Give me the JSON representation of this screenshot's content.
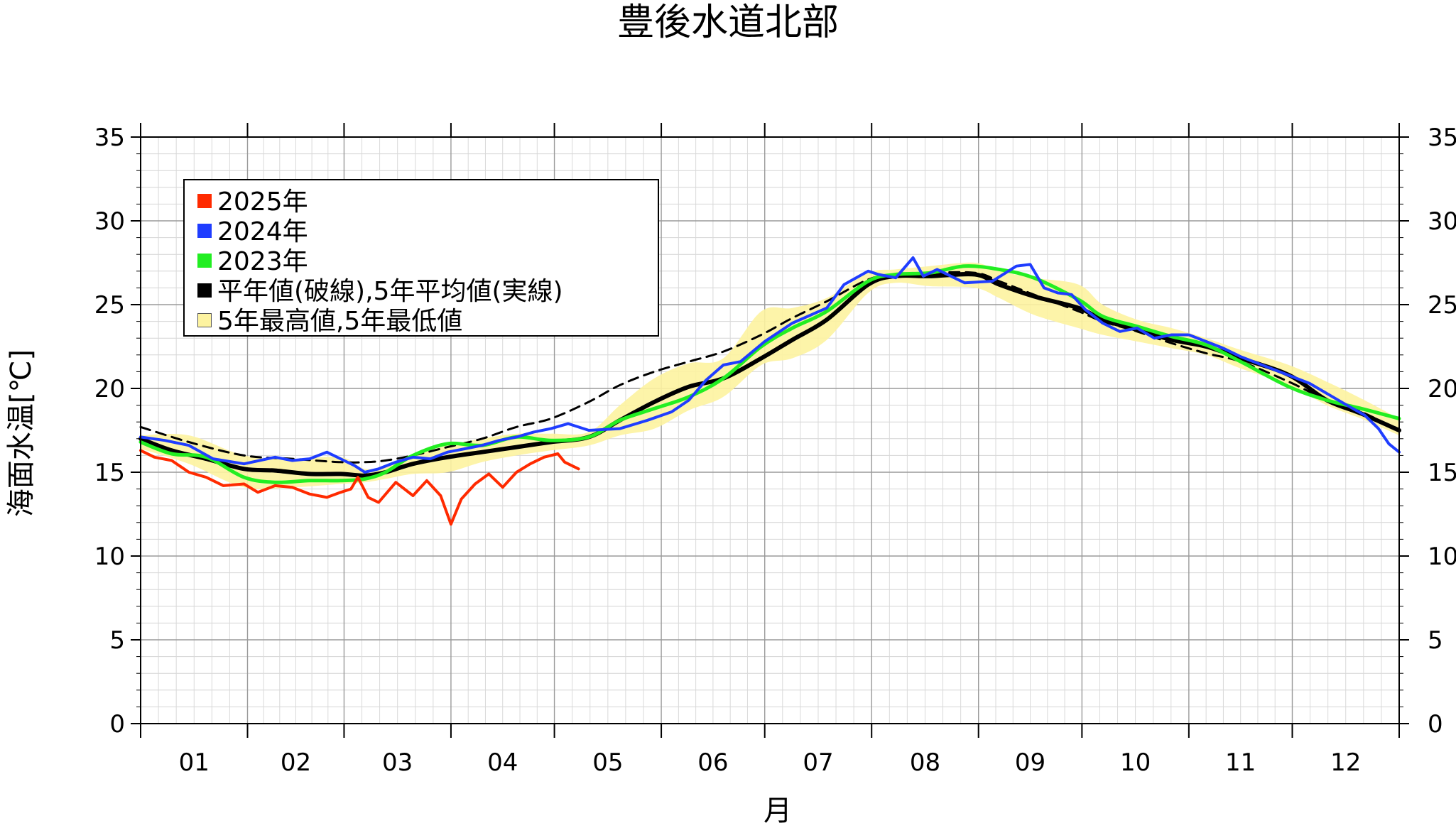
{
  "title": "豊後水道北部",
  "xlabel": "月",
  "ylabel": "海面水温[℃]",
  "legend": [
    {
      "label": "2025年",
      "color": "#ff2a00"
    },
    {
      "label": "2024年",
      "color": "#1f3dff"
    },
    {
      "label": "2023年",
      "color": "#22ee22"
    },
    {
      "label": "平年値(破線),5年平均値(実線)",
      "color": "#000000"
    },
    {
      "label": "5年最高値,5年最低値",
      "color": "#fdf3a0"
    }
  ],
  "chart_data": {
    "type": "line",
    "title": "豊後水道北部",
    "xlabel": "月",
    "ylabel": "海面水温[℃]",
    "x_unit": "day of year",
    "xlim": [
      1,
      366
    ],
    "ylim": [
      0,
      35
    ],
    "yticks": [
      0,
      5,
      10,
      15,
      20,
      25,
      30,
      35
    ],
    "month_ticks": [
      "01",
      "02",
      "03",
      "04",
      "05",
      "06",
      "07",
      "08",
      "09",
      "10",
      "11",
      "12"
    ],
    "grid": true,
    "legend_position": "top-left",
    "series": [
      {
        "name": "2025年",
        "color": "#ff2a00",
        "style": "solid",
        "x": [
          1,
          5,
          10,
          15,
          20,
          25,
          31,
          35,
          40,
          45,
          50,
          55,
          59,
          62,
          64,
          67,
          70,
          75,
          80,
          84,
          88,
          91,
          94,
          98,
          102,
          106,
          110,
          114,
          118,
          122,
          124,
          128
        ],
        "y": [
          16.3,
          15.9,
          15.7,
          15.0,
          14.7,
          14.2,
          14.3,
          13.8,
          14.2,
          14.1,
          13.7,
          13.5,
          13.8,
          14.0,
          14.7,
          13.5,
          13.2,
          14.4,
          13.6,
          14.5,
          13.6,
          11.9,
          13.4,
          14.3,
          14.9,
          14.1,
          15.0,
          15.5,
          15.9,
          16.1,
          15.6,
          15.2
        ]
      },
      {
        "name": "2024年",
        "color": "#1f3dff",
        "style": "solid",
        "x": [
          1,
          8,
          15,
          22,
          31,
          40,
          45,
          50,
          55,
          60,
          63,
          66,
          70,
          75,
          80,
          85,
          90,
          95,
          100,
          105,
          110,
          115,
          120,
          125,
          131,
          140,
          148,
          155,
          160,
          165,
          170,
          175,
          182,
          190,
          200,
          205,
          212,
          215,
          220,
          225,
          228,
          232,
          236,
          240,
          248,
          255,
          259,
          263,
          267,
          271,
          275,
          280,
          285,
          290,
          295,
          300,
          305,
          310,
          315,
          320,
          330,
          340,
          350,
          356,
          360,
          363,
          366
        ],
        "y": [
          17.1,
          16.9,
          16.6,
          15.8,
          15.5,
          15.9,
          15.7,
          15.8,
          16.2,
          15.7,
          15.4,
          15.0,
          15.2,
          15.6,
          15.9,
          15.8,
          16.2,
          16.4,
          16.6,
          16.9,
          17.1,
          17.4,
          17.6,
          17.9,
          17.5,
          17.6,
          18.1,
          18.6,
          19.3,
          20.5,
          21.4,
          21.6,
          22.8,
          23.9,
          24.8,
          26.2,
          27.0,
          26.8,
          26.6,
          27.8,
          26.7,
          27.1,
          26.7,
          26.3,
          26.4,
          27.3,
          27.4,
          26.0,
          25.7,
          25.6,
          24.7,
          23.9,
          23.4,
          23.6,
          23.0,
          23.2,
          23.2,
          22.8,
          22.4,
          21.9,
          21.1,
          20.3,
          19.1,
          18.4,
          17.6,
          16.7,
          16.2
        ]
      },
      {
        "name": "2023年",
        "color": "#22ee22",
        "style": "solid",
        "x": [
          1,
          10,
          20,
          31,
          40,
          50,
          59,
          66,
          72,
          80,
          90,
          100,
          110,
          120,
          131,
          140,
          150,
          160,
          170,
          181,
          190,
          200,
          212,
          220,
          230,
          240,
          250,
          260,
          273,
          280,
          290,
          300,
          310,
          320,
          334,
          345,
          355,
          366
        ],
        "y": [
          16.8,
          16.1,
          15.9,
          14.7,
          14.4,
          14.5,
          14.5,
          14.6,
          15.0,
          16.0,
          16.7,
          16.6,
          17.1,
          16.9,
          17.1,
          18.1,
          18.8,
          19.5,
          20.6,
          22.5,
          23.6,
          24.6,
          26.4,
          26.8,
          26.9,
          27.3,
          27.1,
          26.6,
          25.3,
          24.3,
          23.7,
          23.1,
          22.6,
          21.6,
          20.1,
          19.3,
          18.8,
          18.2
        ]
      },
      {
        "name": "平年値",
        "color": "#000000",
        "style": "dashed",
        "x": [
          1,
          15,
          31,
          45,
          59,
          66,
          72,
          80,
          90,
          100,
          110,
          120,
          131,
          140,
          150,
          160,
          170,
          181,
          190,
          200,
          212,
          220,
          230,
          243,
          250,
          260,
          273,
          280,
          290,
          300,
          310,
          320,
          334,
          345,
          355,
          366
        ],
        "y": [
          17.7,
          16.8,
          16.0,
          15.8,
          15.6,
          15.6,
          15.7,
          16.0,
          16.5,
          17.0,
          17.7,
          18.2,
          19.2,
          20.2,
          21.0,
          21.6,
          22.2,
          23.2,
          24.2,
          25.2,
          26.5,
          26.8,
          26.9,
          26.9,
          26.4,
          25.6,
          24.6,
          24.0,
          23.4,
          22.7,
          22.1,
          21.6,
          20.4,
          19.3,
          18.6,
          17.5
        ]
      },
      {
        "name": "5年平均値",
        "color": "#000000",
        "style": "solid",
        "x": [
          1,
          10,
          20,
          31,
          40,
          50,
          59,
          66,
          72,
          80,
          90,
          100,
          110,
          120,
          131,
          140,
          150,
          160,
          170,
          181,
          190,
          200,
          212,
          220,
          230,
          243,
          250,
          260,
          273,
          280,
          290,
          300,
          310,
          320,
          334,
          345,
          355,
          366
        ],
        "y": [
          17.0,
          16.3,
          15.8,
          15.2,
          15.1,
          14.9,
          14.9,
          14.8,
          15.0,
          15.5,
          15.9,
          16.2,
          16.5,
          16.8,
          17.1,
          18.1,
          19.2,
          20.1,
          20.6,
          21.8,
          22.9,
          24.1,
          26.2,
          26.7,
          26.7,
          26.8,
          26.2,
          25.5,
          24.8,
          24.1,
          23.5,
          22.9,
          22.5,
          21.8,
          20.8,
          19.3,
          18.5,
          17.5
        ]
      },
      {
        "name": "5年最高値",
        "color": "#fdf3a0",
        "style": "band-upper",
        "x": [
          1,
          15,
          31,
          45,
          59,
          66,
          72,
          80,
          90,
          100,
          110,
          120,
          131,
          140,
          150,
          160,
          170,
          181,
          190,
          200,
          212,
          220,
          230,
          243,
          250,
          260,
          273,
          280,
          290,
          300,
          310,
          320,
          334,
          345,
          355,
          366
        ],
        "y": [
          17.2,
          17.2,
          16.0,
          15.8,
          15.9,
          15.2,
          15.4,
          16.0,
          16.6,
          17.0,
          17.3,
          17.3,
          17.4,
          19.0,
          20.6,
          21.5,
          21.8,
          24.6,
          24.8,
          25.4,
          26.9,
          27.1,
          27.3,
          27.5,
          27.0,
          26.6,
          26.2,
          25.0,
          24.1,
          23.6,
          23.0,
          22.3,
          21.4,
          20.4,
          19.4,
          18.2
        ]
      },
      {
        "name": "5年最低値",
        "color": "#fdf3a0",
        "style": "band-lower",
        "x": [
          1,
          15,
          31,
          45,
          59,
          66,
          72,
          80,
          90,
          100,
          110,
          120,
          131,
          140,
          150,
          160,
          170,
          181,
          190,
          200,
          212,
          220,
          230,
          243,
          250,
          260,
          273,
          280,
          290,
          300,
          310,
          320,
          334,
          345,
          355,
          366
        ],
        "y": [
          16.4,
          15.5,
          14.1,
          14.1,
          14.3,
          14.4,
          14.6,
          14.9,
          15.0,
          15.6,
          16.0,
          16.3,
          16.6,
          17.2,
          17.6,
          18.7,
          19.5,
          21.4,
          21.8,
          22.9,
          25.7,
          26.3,
          26.1,
          26.0,
          25.4,
          24.4,
          23.6,
          23.2,
          22.8,
          22.4,
          22.0,
          21.2,
          20.2,
          19.0,
          18.2,
          17.2
        ]
      }
    ]
  }
}
